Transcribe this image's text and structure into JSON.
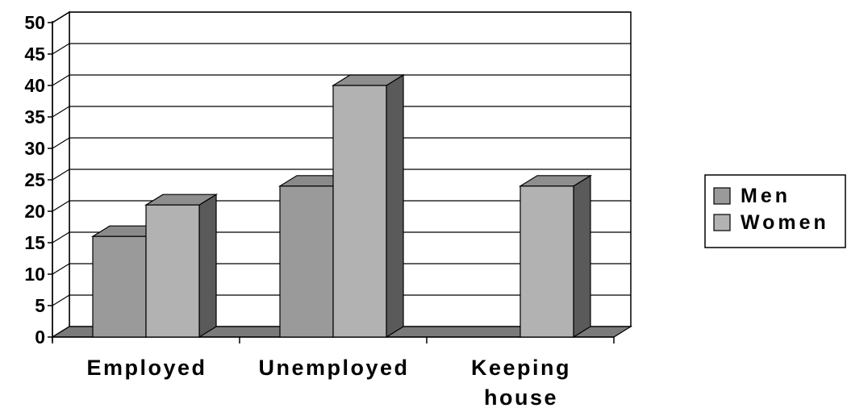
{
  "chart_data": {
    "type": "bar",
    "categories": [
      "Employed",
      "Unemployed",
      "Keeping house"
    ],
    "category_lines": [
      [
        "Employed"
      ],
      [
        "Unemployed"
      ],
      [
        "Keeping",
        "house"
      ]
    ],
    "series": [
      {
        "name": "Men",
        "values": [
          16,
          24,
          0
        ],
        "color": "#9a9a9a",
        "top_color": "#8a8a8a",
        "side_color": "#5a5a5a"
      },
      {
        "name": "Women",
        "values": [
          21,
          40,
          24
        ],
        "color": "#b2b2b2",
        "top_color": "#8e8e8e",
        "side_color": "#5a5a5a"
      }
    ],
    "title": "",
    "xlabel": "",
    "ylabel": "",
    "ylim": [
      0,
      50
    ],
    "yticks": [
      0,
      5,
      10,
      15,
      20,
      25,
      30,
      35,
      40,
      45,
      50
    ],
    "style": "3d-clustered-column",
    "grid": true,
    "legend_position": "right"
  }
}
